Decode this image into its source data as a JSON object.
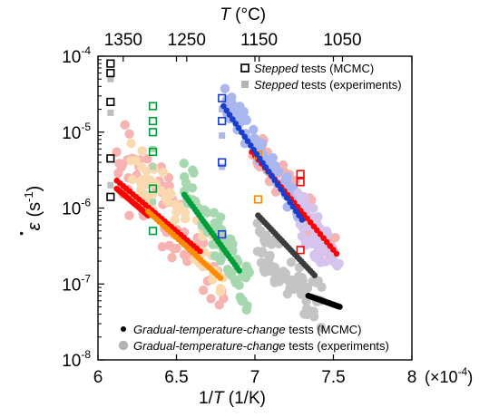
{
  "chart_data": {
    "type": "scatter",
    "xlabel": "1/T (1/K)",
    "xlabel_parts": [
      "1/",
      "T",
      " (1/K)"
    ],
    "x_multiplier_label": "(×10",
    "x_multiplier_exp": "-4",
    "x_multiplier_close": ")",
    "xlim": [
      6,
      8
    ],
    "x_ticks": [
      6,
      6.5,
      7,
      7.5,
      8
    ],
    "x_tick_labels": [
      "6",
      "6.5",
      "7",
      "7.5",
      "8"
    ],
    "x2label_italic": "T",
    "x2label_rest": " (°C)",
    "x2_ticks": [
      {
        "celsius": 1350,
        "label": "1350"
      },
      {
        "celsius": 1250,
        "label": "1250"
      },
      {
        "celsius": 1150,
        "label": "1150"
      },
      {
        "celsius": 1050,
        "label": "1050"
      }
    ],
    "ylabel_symbol": "ε",
    "ylabel_dot": "•",
    "ylabel_unit_open": "(s",
    "ylabel_unit_exp": "-1",
    "ylabel_unit_close": ")",
    "y_scale": "log",
    "ylim": [
      1e-08,
      0.0001
    ],
    "y_ticks": [
      {
        "value": 0.0001,
        "base": "10",
        "exp": "-4"
      },
      {
        "value": 1e-05,
        "base": "10",
        "exp": "-5"
      },
      {
        "value": 1e-06,
        "base": "10",
        "exp": "-6"
      },
      {
        "value": 1e-07,
        "base": "10",
        "exp": "-7"
      },
      {
        "value": 1e-08,
        "base": "10",
        "exp": "-8"
      }
    ],
    "legend_top": [
      {
        "marker": "open-square",
        "italic": "Stepped",
        "rest": " tests (MCMC)",
        "color": "#000000"
      },
      {
        "marker": "filled-square",
        "italic": "Stepped",
        "rest": " tests (experiments)",
        "color": "#b4b4b4"
      }
    ],
    "legend_bottom": [
      {
        "marker": "small-dot",
        "italic": "Gradual-temperature-change",
        "rest": " tests (MCMC)",
        "color": "#000000"
      },
      {
        "marker": "big-dot",
        "italic": "Gradual-temperature-change",
        "rest": " tests (experiments)",
        "color": "#b4b4b4"
      }
    ],
    "series": [
      {
        "color": "#000000",
        "light": "#bdbdbd",
        "stepped_mcmc": [
          {
            "x": 6.08,
            "y": 8e-05
          },
          {
            "x": 6.08,
            "y": 6e-05
          },
          {
            "x": 6.08,
            "y": 2.5e-05
          },
          {
            "x": 6.08,
            "y": 4.5e-06
          },
          {
            "x": 6.08,
            "y": 1.4e-06
          }
        ],
        "stepped_exp": [
          {
            "x": 6.08,
            "y": 5e-05
          },
          {
            "x": 6.08,
            "y": 1.8e-05
          },
          {
            "x": 6.08,
            "y": 2e-06
          }
        ],
        "gradual_mcmc": {
          "x": [
            7.34,
            7.54
          ],
          "y": [
            7e-08,
            5e-08
          ]
        },
        "gradual_exp": null
      },
      {
        "color": "#ff0000",
        "light": "#f7b2b2",
        "stepped_mcmc": [
          {
            "x": 7.29,
            "y": 2.8e-06
          },
          {
            "x": 7.29,
            "y": 2.2e-06
          },
          {
            "x": 7.29,
            "y": 2.8e-07
          }
        ],
        "stepped_exp": [],
        "gradual_mcmc": {
          "x": [
            6.12,
            6.65
          ],
          "y": [
            2.3e-06,
            2.7e-07
          ]
        },
        "gradual_exp": {
          "x": [
            6.12,
            6.8
          ],
          "y": [
            4.5e-06,
            1.5e-07
          ],
          "spread": 0.55
        }
      },
      {
        "color": "#ff0000",
        "light": "#f7b2b2",
        "stepped_mcmc": [],
        "stepped_exp": [],
        "gradual_mcmc": {
          "x": [
            6.12,
            6.32
          ],
          "y": [
            1.8e-06,
            8e-07
          ]
        },
        "gradual_exp": null
      },
      {
        "color": "#ff0000",
        "light": "#f7b2b2",
        "stepped_mcmc": [],
        "stepped_exp": [],
        "gradual_mcmc": {
          "x": [
            6.98,
            7.52
          ],
          "y": [
            5.5e-06,
            2.5e-07
          ]
        },
        "gradual_exp": {
          "x": [
            6.98,
            7.5
          ],
          "y": [
            8e-06,
            3e-07
          ],
          "spread": 0.25
        }
      },
      {
        "color": "#ff8c00",
        "light": "#fbd9b0",
        "stepped_mcmc": [
          {
            "x": 7.02,
            "y": 5e-06
          },
          {
            "x": 7.02,
            "y": 1.3e-06
          }
        ],
        "stepped_exp": [],
        "gradual_mcmc": {
          "x": [
            6.32,
            6.78
          ],
          "y": [
            9e-07,
            1.2e-07
          ]
        },
        "gradual_exp": {
          "x": [
            6.22,
            6.8
          ],
          "y": [
            3.5e-06,
            1.7e-07
          ],
          "spread": 0.35
        }
      },
      {
        "color": "#009e3a",
        "light": "#a6d8b0",
        "stepped_mcmc": [
          {
            "x": 6.35,
            "y": 2.2e-05
          },
          {
            "x": 6.35,
            "y": 1.4e-05
          },
          {
            "x": 6.35,
            "y": 1e-05
          },
          {
            "x": 6.35,
            "y": 5.5e-06
          },
          {
            "x": 6.35,
            "y": 1.8e-06
          },
          {
            "x": 6.35,
            "y": 5e-07
          }
        ],
        "stepped_exp": [
          {
            "x": 6.35,
            "y": 6e-06
          },
          {
            "x": 6.35,
            "y": 3.5e-06
          },
          {
            "x": 6.35,
            "y": 1.2e-06
          }
        ],
        "gradual_mcmc": {
          "x": [
            6.55,
            6.9
          ],
          "y": [
            1.5e-06,
            1.5e-07
          ]
        },
        "gradual_exp": {
          "x": [
            6.55,
            6.97
          ],
          "y": [
            2.5e-06,
            7e-08
          ],
          "spread": 0.3
        }
      },
      {
        "color": "#1a3ecc",
        "light": "#aab6ee",
        "stepped_mcmc": [
          {
            "x": 6.79,
            "y": 2.8e-05
          },
          {
            "x": 6.79,
            "y": 1.4e-05
          },
          {
            "x": 6.79,
            "y": 4e-06
          },
          {
            "x": 6.79,
            "y": 4.5e-07
          }
        ],
        "stepped_exp": [
          {
            "x": 6.79,
            "y": 2e-05
          },
          {
            "x": 6.79,
            "y": 9e-06
          },
          {
            "x": 6.79,
            "y": 3.5e-06
          }
        ],
        "gradual_mcmc": {
          "x": [
            6.8,
            7.3
          ],
          "y": [
            2.2e-05,
            7e-07
          ]
        },
        "gradual_exp": {
          "x": [
            6.8,
            7.3
          ],
          "y": [
            3e-05,
            9e-07
          ],
          "spread": 0.18
        }
      },
      {
        "color": "#3c3c3c",
        "light": "#c4c4c4",
        "stepped_mcmc": [],
        "stepped_exp": [],
        "gradual_mcmc": {
          "x": [
            7.02,
            7.38
          ],
          "y": [
            8e-07,
            1.3e-07
          ]
        },
        "gradual_exp": {
          "x": [
            7.02,
            7.42
          ],
          "y": [
            3.5e-07,
            5e-08
          ],
          "spread": 0.3
        }
      },
      {
        "color": "#9b59d0",
        "light": "#d6c3ee",
        "stepped_mcmc": [],
        "stepped_exp": [],
        "gradual_mcmc": null,
        "gradual_exp": {
          "x": [
            7.28,
            7.52
          ],
          "y": [
            9e-07,
            1.8e-07
          ],
          "spread": 0.3
        }
      }
    ]
  }
}
